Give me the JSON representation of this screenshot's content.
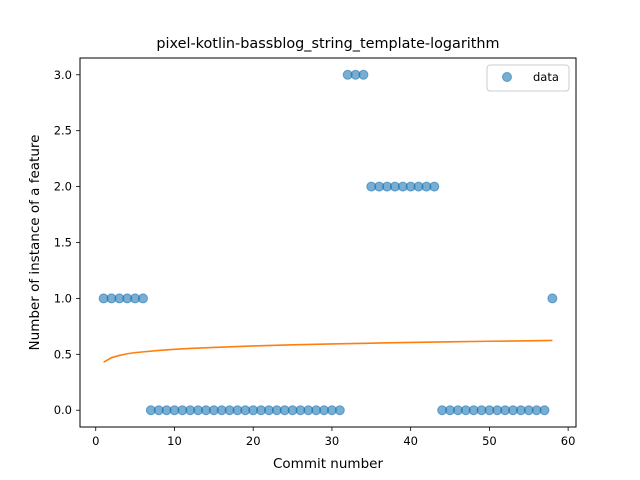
{
  "chart_data": {
    "type": "scatter",
    "title": "pixel-kotlin-bassblog_string_template-logarithm",
    "xlabel": "Commit number",
    "ylabel": "Number of instance of a feature",
    "xlim": [
      -2,
      61
    ],
    "ylim": [
      -0.15,
      3.15
    ],
    "xticks": [
      0,
      10,
      20,
      30,
      40,
      50,
      60
    ],
    "yticks": [
      0.0,
      0.5,
      1.0,
      1.5,
      2.0,
      2.5,
      3.0
    ],
    "xtick_labels": [
      "0",
      "10",
      "20",
      "30",
      "40",
      "50",
      "60"
    ],
    "ytick_labels": [
      "0.0",
      "0.5",
      "1.0",
      "1.5",
      "2.0",
      "2.5",
      "3.0"
    ],
    "legend": {
      "position": "upper right",
      "entries": [
        "data"
      ]
    },
    "colors": {
      "data": "#1f77b4",
      "fit": "#ff7f0e"
    },
    "series": [
      {
        "name": "data",
        "kind": "scatter",
        "x": [
          1,
          2,
          3,
          4,
          5,
          6,
          7,
          8,
          9,
          10,
          11,
          12,
          13,
          14,
          15,
          16,
          17,
          18,
          19,
          20,
          21,
          22,
          23,
          24,
          25,
          26,
          27,
          28,
          29,
          30,
          31,
          32,
          33,
          34,
          35,
          36,
          37,
          38,
          39,
          40,
          41,
          42,
          43,
          44,
          45,
          46,
          47,
          48,
          49,
          50,
          51,
          52,
          53,
          54,
          55,
          56,
          57,
          58
        ],
        "y": [
          1,
          1,
          1,
          1,
          1,
          1,
          0,
          0,
          0,
          0,
          0,
          0,
          0,
          0,
          0,
          0,
          0,
          0,
          0,
          0,
          0,
          0,
          0,
          0,
          0,
          0,
          0,
          0,
          0,
          0,
          0,
          3,
          3,
          3,
          2,
          2,
          2,
          2,
          2,
          2,
          2,
          2,
          2,
          0,
          0,
          0,
          0,
          0,
          0,
          0,
          0,
          0,
          0,
          0,
          0,
          0,
          0,
          1
        ]
      },
      {
        "kind": "line",
        "x": [
          1,
          2,
          3,
          4,
          5,
          6,
          8,
          10,
          12,
          15,
          20,
          25,
          30,
          35,
          40,
          45,
          50,
          55,
          58
        ],
        "y": [
          0.43,
          0.47,
          0.49,
          0.505,
          0.515,
          0.522,
          0.535,
          0.545,
          0.553,
          0.562,
          0.575,
          0.585,
          0.593,
          0.6,
          0.606,
          0.612,
          0.617,
          0.621,
          0.624
        ]
      }
    ]
  }
}
